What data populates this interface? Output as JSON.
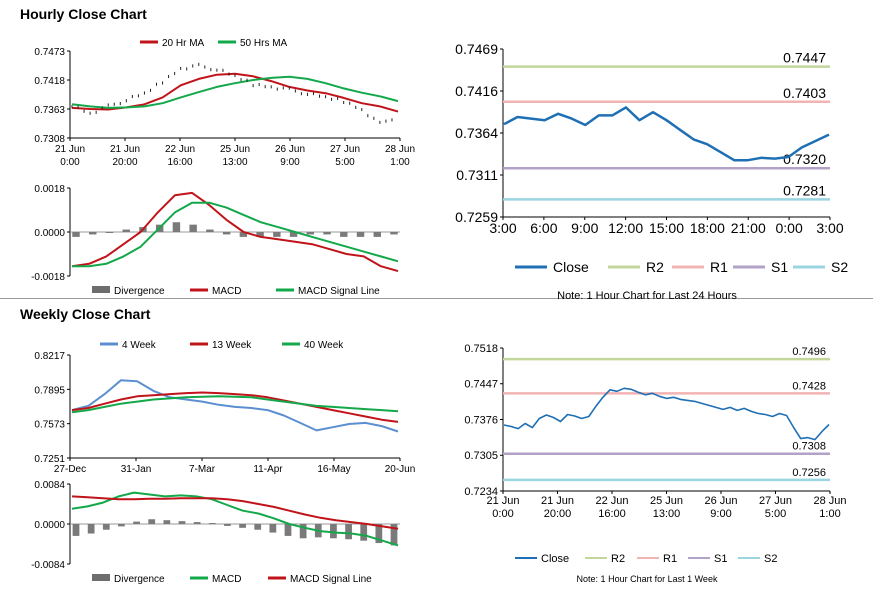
{
  "sections": {
    "hourly_title": "Hourly Close Chart",
    "weekly_title": "Weekly Close Chart"
  },
  "colors": {
    "red": "#c0141a",
    "green": "#13a84a",
    "blue": "#1f6fb5",
    "lightblue": "#5b8fd0",
    "r2": "#c3d69b",
    "r1": "#f2b3b3",
    "s1": "#b3a2c7",
    "s2": "#9bd5e0",
    "gray": "#7f7f7f"
  },
  "chart_data": [
    {
      "id": "hourly-price",
      "type": "line",
      "title": "Hourly price with moving averages",
      "legend": [
        "20 Hr MA",
        "50 Hrs MA"
      ],
      "y_ticks": [
        "0.7473",
        "0.7418",
        "0.7363",
        "0.7308"
      ],
      "ylim": [
        0.7308,
        0.7473
      ],
      "x_ticks": [
        [
          "21 Jun",
          "0:00"
        ],
        [
          "21 Jun",
          "20:00"
        ],
        [
          "22 Jun",
          "16:00"
        ],
        [
          "25 Jun",
          "13:00"
        ],
        [
          "26 Jun",
          "9:00"
        ],
        [
          "27 Jun",
          "5:00"
        ],
        [
          "28 Jun",
          "1:00"
        ]
      ],
      "series": [
        {
          "name": "20 Hr MA",
          "values": [
            0.7365,
            0.7363,
            0.7362,
            0.7366,
            0.7372,
            0.7385,
            0.7408,
            0.742,
            0.7428,
            0.743,
            0.7425,
            0.7416,
            0.7405,
            0.7398,
            0.7393,
            0.7384,
            0.7374,
            0.7368,
            0.7358
          ]
        },
        {
          "name": "50 Hrs MA",
          "values": [
            0.7372,
            0.7368,
            0.7365,
            0.7366,
            0.7368,
            0.7374,
            0.7385,
            0.7395,
            0.7405,
            0.7412,
            0.7418,
            0.7422,
            0.7424,
            0.742,
            0.7412,
            0.7402,
            0.7394,
            0.7387,
            0.7378
          ]
        },
        {
          "name": "Close",
          "values": [
            0.737,
            0.7355,
            0.7368,
            0.738,
            0.7392,
            0.7415,
            0.744,
            0.7445,
            0.7438,
            0.7425,
            0.741,
            0.7405,
            0.74,
            0.7392,
            0.7385,
            0.7378,
            0.7362,
            0.7335,
            0.735
          ]
        }
      ]
    },
    {
      "id": "hourly-macd",
      "type": "bar",
      "title": "Hourly MACD",
      "legend": [
        "Divergence",
        "MACD",
        "MACD Signal Line"
      ],
      "y_ticks": [
        "0.0018",
        "0.0000",
        "-0.0018"
      ],
      "ylim": [
        -0.0018,
        0.0018
      ],
      "divergence": [
        -0.0002,
        -0.0001,
        0.0,
        0.0001,
        0.0002,
        0.0003,
        0.0004,
        0.0003,
        0.0001,
        -0.0001,
        -0.0002,
        -0.0002,
        -0.0002,
        -0.0002,
        -0.0001,
        -0.0001,
        -0.0002,
        -0.0002,
        -0.0002,
        -0.0001
      ],
      "series": [
        {
          "name": "MACD",
          "values": [
            -0.0014,
            -0.0013,
            -0.001,
            -0.0005,
            0.0,
            0.0008,
            0.0015,
            0.0016,
            0.0011,
            0.0005,
            0.0,
            -0.0002,
            -0.0003,
            -0.0004,
            -0.0005,
            -0.0007,
            -0.0009,
            -0.001,
            -0.0014,
            -0.0016
          ]
        },
        {
          "name": "MACD Signal Line",
          "values": [
            -0.0014,
            -0.0014,
            -0.0013,
            -0.001,
            -0.0006,
            0.0001,
            0.0008,
            0.0012,
            0.0012,
            0.001,
            0.0007,
            0.0004,
            0.0002,
            0.0,
            -0.0002,
            -0.0004,
            -0.0006,
            -0.0008,
            -0.001,
            -0.0012
          ]
        }
      ]
    },
    {
      "id": "hourly-24h",
      "type": "line",
      "title": "Note: 1 Hour Chart for Last 24 Hours",
      "y_ticks": [
        "0.7469",
        "0.7416",
        "0.7364",
        "0.7311",
        "0.7259"
      ],
      "ylim": [
        0.7259,
        0.7469
      ],
      "x_ticks": [
        "3:00",
        "6:00",
        "9:00",
        "12:00",
        "15:00",
        "18:00",
        "21:00",
        "0:00",
        "3:00"
      ],
      "levels": {
        "R2": "0.7447",
        "R1": "0.7403",
        "S1": "0.7320",
        "S2": "0.7281"
      },
      "legend": [
        "Close",
        "R2",
        "R1",
        "S1",
        "S2"
      ],
      "series": [
        {
          "name": "Close",
          "values": [
            0.7375,
            0.7384,
            0.7382,
            0.738,
            0.7388,
            0.7382,
            0.7374,
            0.7386,
            0.7386,
            0.7396,
            0.738,
            0.739,
            0.738,
            0.7368,
            0.7356,
            0.735,
            0.734,
            0.733,
            0.733,
            0.7333,
            0.7332,
            0.7334,
            0.7346,
            0.7354,
            0.7362
          ]
        }
      ]
    },
    {
      "id": "weekly-price",
      "type": "line",
      "title": "Weekly price with moving averages",
      "legend": [
        "4 Week",
        "13 Week",
        "40 Week"
      ],
      "y_ticks": [
        "0.8217",
        "0.7895",
        "0.7573",
        "0.7251"
      ],
      "ylim": [
        0.7251,
        0.8217
      ],
      "x_ticks": [
        "27-Dec",
        "31-Jan",
        "7-Mar",
        "11-Apr",
        "16-May",
        "20-Jun"
      ],
      "series": [
        {
          "name": "4 Week",
          "values": [
            0.77,
            0.774,
            0.785,
            0.798,
            0.797,
            0.788,
            0.782,
            0.78,
            0.778,
            0.775,
            0.773,
            0.772,
            0.77,
            0.765,
            0.758,
            0.751,
            0.754,
            0.757,
            0.758,
            0.755,
            0.75
          ]
        },
        {
          "name": "13 Week",
          "values": [
            0.77,
            0.772,
            0.776,
            0.78,
            0.783,
            0.784,
            0.785,
            0.786,
            0.7865,
            0.786,
            0.785,
            0.784,
            0.782,
            0.779,
            0.776,
            0.773,
            0.77,
            0.767,
            0.764,
            0.761,
            0.759
          ]
        },
        {
          "name": "40 Week",
          "values": [
            0.768,
            0.77,
            0.773,
            0.776,
            0.778,
            0.78,
            0.781,
            0.782,
            0.7825,
            0.783,
            0.7825,
            0.782,
            0.78,
            0.778,
            0.776,
            0.774,
            0.773,
            0.772,
            0.771,
            0.77,
            0.769
          ]
        }
      ]
    },
    {
      "id": "weekly-macd",
      "type": "bar",
      "title": "Weekly MACD",
      "legend": [
        "Divergence",
        "MACD",
        "MACD Signal Line"
      ],
      "y_ticks": [
        "0.0084",
        "0.0000",
        "-0.0084"
      ],
      "ylim": [
        -0.0084,
        0.0084
      ],
      "divergence": [
        -0.0025,
        -0.002,
        -0.0012,
        -0.0005,
        0.0005,
        0.001,
        0.0008,
        0.0006,
        0.0004,
        0.0002,
        -0.0004,
        -0.0008,
        -0.0012,
        -0.0018,
        -0.0025,
        -0.003,
        -0.0028,
        -0.003,
        -0.0032,
        -0.0035,
        -0.004,
        -0.0045
      ],
      "series": [
        {
          "name": "MACD",
          "values": [
            0.0032,
            0.0037,
            0.0045,
            0.0058,
            0.0066,
            0.0062,
            0.0058,
            0.006,
            0.0058,
            0.0052,
            0.004,
            0.0028,
            0.0022,
            0.0012,
            0.0,
            -0.0008,
            -0.0015,
            -0.0018,
            -0.002,
            -0.0025,
            -0.0035,
            -0.0045
          ]
        },
        {
          "name": "MACD Signal Line",
          "values": [
            0.0058,
            0.0056,
            0.0054,
            0.0052,
            0.0052,
            0.0053,
            0.0053,
            0.0054,
            0.0054,
            0.0054,
            0.0052,
            0.0048,
            0.0042,
            0.0036,
            0.0028,
            0.002,
            0.0013,
            0.0008,
            0.0004,
            0.0,
            -0.0005,
            -0.001
          ]
        }
      ]
    },
    {
      "id": "hourly-1w",
      "type": "line",
      "title": "Note: 1 Hour Chart for Last 1 Week",
      "y_ticks": [
        "0.7518",
        "0.7447",
        "0.7376",
        "0.7305",
        "0.7234"
      ],
      "ylim": [
        0.7234,
        0.7518
      ],
      "x_ticks": [
        [
          "21 Jun",
          "0:00"
        ],
        [
          "21 Jun",
          "20:00"
        ],
        [
          "22 Jun",
          "16:00"
        ],
        [
          "25 Jun",
          "13:00"
        ],
        [
          "26 Jun",
          "9:00"
        ],
        [
          "27 Jun",
          "5:00"
        ],
        [
          "28 Jun",
          "1:00"
        ]
      ],
      "levels": {
        "R2": "0.7496",
        "R1": "0.7428",
        "S1": "0.7308",
        "S2": "0.7256"
      },
      "legend": [
        "Close",
        "R2",
        "R1",
        "S1",
        "S2"
      ],
      "series": [
        {
          "name": "Close",
          "values": [
            0.7365,
            0.7362,
            0.7358,
            0.7368,
            0.736,
            0.7378,
            0.7385,
            0.738,
            0.7372,
            0.7386,
            0.7383,
            0.7378,
            0.7382,
            0.7402,
            0.742,
            0.7435,
            0.7432,
            0.7438,
            0.7436,
            0.743,
            0.7425,
            0.7428,
            0.7422,
            0.7418,
            0.742,
            0.7416,
            0.7414,
            0.7412,
            0.7408,
            0.7404,
            0.74,
            0.7396,
            0.74,
            0.7394,
            0.7398,
            0.7392,
            0.7388,
            0.7386,
            0.7382,
            0.7388,
            0.7384,
            0.736,
            0.7338,
            0.734,
            0.7336,
            0.7352,
            0.7366
          ]
        }
      ]
    }
  ]
}
